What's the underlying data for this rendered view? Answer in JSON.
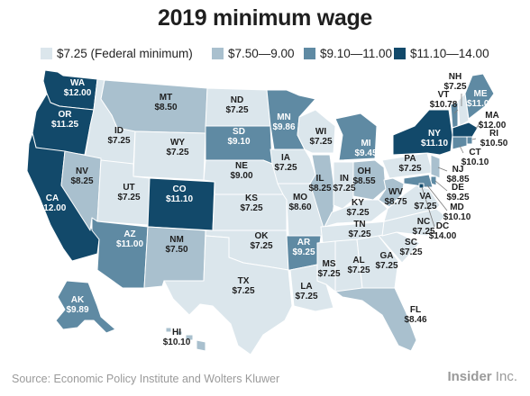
{
  "title": "2019 minimum wage",
  "legend": [
    {
      "label": "$7.25 (Federal minimum)",
      "color": "#dbe6ec"
    },
    {
      "label": "$7.50—9.00",
      "color": "#a9c0ce"
    },
    {
      "label": "$9.10—11.00",
      "color": "#5f8aa3"
    },
    {
      "label": "$11.10—14.00",
      "color": "#12496a"
    }
  ],
  "states": {
    "WA": {
      "abbr": "WA",
      "wage": "$12.00"
    },
    "OR": {
      "abbr": "OR",
      "wage": "$11.25"
    },
    "CA": {
      "abbr": "CA",
      "wage": "$12.00"
    },
    "ID": {
      "abbr": "ID",
      "wage": "$7.25"
    },
    "NV": {
      "abbr": "NV",
      "wage": "$8.25"
    },
    "MT": {
      "abbr": "MT",
      "wage": "$8.50"
    },
    "WY": {
      "abbr": "WY",
      "wage": "$7.25"
    },
    "UT": {
      "abbr": "UT",
      "wage": "$7.25"
    },
    "AZ": {
      "abbr": "AZ",
      "wage": "$11.00"
    },
    "CO": {
      "abbr": "CO",
      "wage": "$11.10"
    },
    "NM": {
      "abbr": "NM",
      "wage": "$7.50"
    },
    "ND": {
      "abbr": "ND",
      "wage": "$7.25"
    },
    "SD": {
      "abbr": "SD",
      "wage": "$9.10"
    },
    "NE": {
      "abbr": "NE",
      "wage": "$9.00"
    },
    "KS": {
      "abbr": "KS",
      "wage": "$7.25"
    },
    "OK": {
      "abbr": "OK",
      "wage": "$7.25"
    },
    "TX": {
      "abbr": "TX",
      "wage": "$7.25"
    },
    "MN": {
      "abbr": "MN",
      "wage": "$9.86"
    },
    "IA": {
      "abbr": "IA",
      "wage": "$7.25"
    },
    "MO": {
      "abbr": "MO",
      "wage": "$8.60"
    },
    "AR": {
      "abbr": "AR",
      "wage": "$9.25"
    },
    "LA": {
      "abbr": "LA",
      "wage": "$7.25"
    },
    "WI": {
      "abbr": "WI",
      "wage": "$7.25"
    },
    "IL": {
      "abbr": "IL",
      "wage": "$8.25"
    },
    "MI": {
      "abbr": "MI",
      "wage": "$9.45"
    },
    "IN": {
      "abbr": "IN",
      "wage": "$7.25"
    },
    "OH": {
      "abbr": "OH",
      "wage": "$8.55"
    },
    "KY": {
      "abbr": "KY",
      "wage": "$7.25"
    },
    "TN": {
      "abbr": "TN",
      "wage": "$7.25"
    },
    "MS": {
      "abbr": "MS",
      "wage": "$7.25"
    },
    "AL": {
      "abbr": "AL",
      "wage": "$7.25"
    },
    "GA": {
      "abbr": "GA",
      "wage": "$7.25"
    },
    "FL": {
      "abbr": "FL",
      "wage": "$8.46"
    },
    "SC": {
      "abbr": "SC",
      "wage": "$7.25"
    },
    "NC": {
      "abbr": "NC",
      "wage": "$7.25"
    },
    "VA": {
      "abbr": "VA",
      "wage": "$7.25"
    },
    "WV": {
      "abbr": "WV",
      "wage": "$8.75"
    },
    "PA": {
      "abbr": "PA",
      "wage": "$7.25"
    },
    "NY": {
      "abbr": "NY",
      "wage": "$11.10"
    },
    "VT": {
      "abbr": "VT",
      "wage": "$10.78"
    },
    "NH": {
      "abbr": "NH",
      "wage": "$7.25"
    },
    "ME": {
      "abbr": "ME",
      "wage": "$11.00"
    },
    "MA": {
      "abbr": "MA",
      "wage": "$12.00"
    },
    "RI": {
      "abbr": "RI",
      "wage": "$10.50"
    },
    "CT": {
      "abbr": "CT",
      "wage": "$10.10"
    },
    "NJ": {
      "abbr": "NJ",
      "wage": "$8.85"
    },
    "DE": {
      "abbr": "DE",
      "wage": "$9.25"
    },
    "MD": {
      "abbr": "MD",
      "wage": "$10.10"
    },
    "DC": {
      "abbr": "DC",
      "wage": "$14.00"
    },
    "AK": {
      "abbr": "AK",
      "wage": "$9.89"
    },
    "HI": {
      "abbr": "HI",
      "wage": "$10.10"
    }
  },
  "footer": {
    "source": "Source: Economic Policy Institute and Wolters Kluwer",
    "brand_bold": "Insider",
    "brand_rest": " Inc."
  }
}
